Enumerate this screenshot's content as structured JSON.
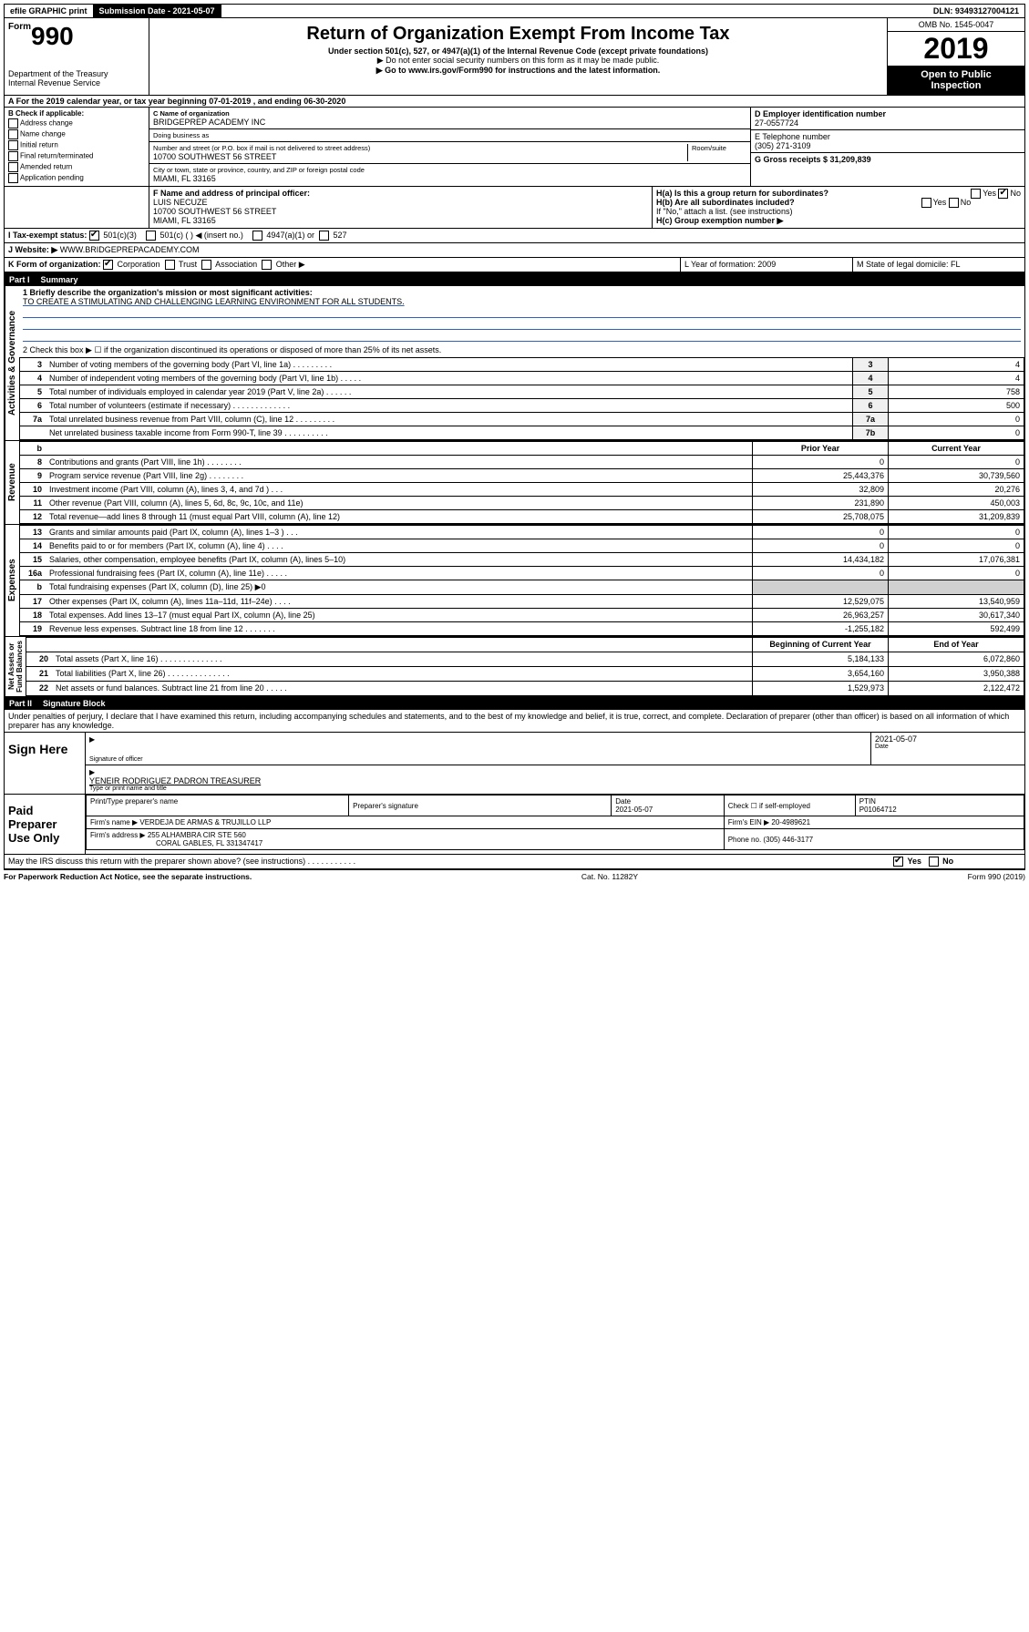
{
  "topbar": {
    "efile": "efile GRAPHIC print",
    "submission_label": "Submission Date - 2021-05-07",
    "dln": "DLN: 93493127004121"
  },
  "header": {
    "form_word": "Form",
    "form_number": "990",
    "dept": "Department of the Treasury\nInternal Revenue Service",
    "title": "Return of Organization Exempt From Income Tax",
    "under": "Under section 501(c), 527, or 4947(a)(1) of the Internal Revenue Code (except private foundations)",
    "no_ssn": "▶ Do not enter social security numbers on this form as it may be made public.",
    "goto": "▶ Go to www.irs.gov/Form990 for instructions and the latest information.",
    "omb": "OMB No. 1545-0047",
    "year": "2019",
    "open_public": "Open to Public\nInspection"
  },
  "period": {
    "line_a": "A For the 2019 calendar year, or tax year beginning 07-01-2019    , and ending 06-30-2020"
  },
  "section_b": {
    "b_label": "B Check if applicable:",
    "checks": [
      "Address change",
      "Name change",
      "Initial return",
      "Final return/terminated",
      "Amended return",
      "Application pending"
    ],
    "c_label": "C Name of organization",
    "org_name": "BRIDGEPREP ACADEMY INC",
    "dba_label": "Doing business as",
    "dba": "",
    "street_label": "Number and street (or P.O. box if mail is not delivered to street address)",
    "room_label": "Room/suite",
    "street": "10700 SOUTHWEST 56 STREET",
    "city_label": "City or town, state or province, country, and ZIP or foreign postal code",
    "city": "MIAMI, FL  33165",
    "d_label": "D Employer identification number",
    "ein": "27-0557724",
    "e_label": "E Telephone number",
    "phone": "(305) 271-3109",
    "g_label": "G Gross receipts $ 31,209,839"
  },
  "section_f": {
    "f_label": "F  Name and address of principal officer:",
    "officer_name": "LUIS NECUZE",
    "officer_addr1": "10700 SOUTHWEST 56 STREET",
    "officer_addr2": "MIAMI, FL  33165",
    "ha_label": "H(a)  Is this a group return for subordinates?",
    "ha_yes": "Yes",
    "ha_no": "No",
    "hb_label": "H(b)  Are all subordinates included?",
    "hb_yes": "Yes",
    "hb_no": "No",
    "hb_note": "If \"No,\" attach a list. (see instructions)",
    "hc_label": "H(c)  Group exemption number ▶"
  },
  "section_i": {
    "i_label": "I   Tax-exempt status:",
    "opt1": "501(c)(3)",
    "opt2": "501(c) (   ) ◀ (insert no.)",
    "opt3": "4947(a)(1) or",
    "opt4": "527"
  },
  "section_j": {
    "j_label": "J   Website: ▶",
    "website": "WWW.BRIDGEPREPACADEMY.COM"
  },
  "section_k": {
    "k_label": "K Form of organization:",
    "opts": [
      "Corporation",
      "Trust",
      "Association",
      "Other ▶"
    ],
    "l_label": "L Year of formation: 2009",
    "m_label": "M State of legal domicile: FL"
  },
  "part1": {
    "header_num": "Part I",
    "header_title": "Summary",
    "line1_label": "1  Briefly describe the organization's mission or most significant activities:",
    "line1_text": "TO CREATE A STIMULATING AND CHALLENGING LEARNING ENVIRONMENT FOR ALL STUDENTS.",
    "line2_label": "2  Check this box ▶ ☐  if the organization discontinued its operations or disposed of more than 25% of its net assets.",
    "rows_top": [
      {
        "n": "3",
        "desc": "Number of voting members of the governing body (Part VI, line 1a)  .    .    .    .    .    .    .    .    .",
        "ln": "3",
        "v": "4"
      },
      {
        "n": "4",
        "desc": "Number of independent voting members of the governing body (Part VI, line 1b)   .    .    .    .    .",
        "ln": "4",
        "v": "4"
      },
      {
        "n": "5",
        "desc": "Total number of individuals employed in calendar year 2019 (Part V, line 2a)    .    .    .    .    .    .",
        "ln": "5",
        "v": "758"
      },
      {
        "n": "6",
        "desc": "Total number of volunteers (estimate if necessary)   .    .    .    .    .    .    .    .    .    .    .    .    .",
        "ln": "6",
        "v": "500"
      },
      {
        "n": "7a",
        "desc": "Total unrelated business revenue from Part VIII, column (C), line 12   .    .    .    .    .    .    .    .    .",
        "ln": "7a",
        "v": "0"
      },
      {
        "n": "",
        "desc": "Net unrelated business taxable income from Form 990-T, line 39   .    .    .    .    .    .    .    .    .    .",
        "ln": "7b",
        "v": "0"
      }
    ],
    "col_prior": "Prior Year",
    "col_current": "Current Year",
    "revenue_rows": [
      {
        "n": "8",
        "desc": "Contributions and grants (Part VIII, line 1h)   .    .    .    .    .    .    .    .",
        "p": "0",
        "c": "0"
      },
      {
        "n": "9",
        "desc": "Program service revenue (Part VIII, line 2g)   .    .    .    .    .    .    .    .",
        "p": "25,443,376",
        "c": "30,739,560"
      },
      {
        "n": "10",
        "desc": "Investment income (Part VIII, column (A), lines 3, 4, and 7d )   .    .    .",
        "p": "32,809",
        "c": "20,276"
      },
      {
        "n": "11",
        "desc": "Other revenue (Part VIII, column (A), lines 5, 6d, 8c, 9c, 10c, and 11e)",
        "p": "231,890",
        "c": "450,003"
      },
      {
        "n": "12",
        "desc": "Total revenue—add lines 8 through 11 (must equal Part VIII, column (A), line 12)",
        "p": "25,708,075",
        "c": "31,209,839"
      }
    ],
    "expense_rows": [
      {
        "n": "13",
        "desc": "Grants and similar amounts paid (Part IX, column (A), lines 1–3 )   .    .    .",
        "p": "0",
        "c": "0"
      },
      {
        "n": "14",
        "desc": "Benefits paid to or for members (Part IX, column (A), line 4)   .    .    .    .",
        "p": "0",
        "c": "0"
      },
      {
        "n": "15",
        "desc": "Salaries, other compensation, employee benefits (Part IX, column (A), lines 5–10)",
        "p": "14,434,182",
        "c": "17,076,381"
      },
      {
        "n": "16a",
        "desc": "Professional fundraising fees (Part IX, column (A), line 11e)   .    .    .    .    .",
        "p": "0",
        "c": "0"
      },
      {
        "n": "b",
        "desc": "Total fundraising expenses (Part IX, column (D), line 25) ▶0",
        "p": "",
        "c": "",
        "grey": true
      },
      {
        "n": "17",
        "desc": "Other expenses (Part IX, column (A), lines 11a–11d, 11f–24e)   .    .    .    .",
        "p": "12,529,075",
        "c": "13,540,959"
      },
      {
        "n": "18",
        "desc": "Total expenses. Add lines 13–17 (must equal Part IX, column (A), line 25)",
        "p": "26,963,257",
        "c": "30,617,340"
      },
      {
        "n": "19",
        "desc": "Revenue less expenses. Subtract line 18 from line 12   .    .    .    .    .    .    .",
        "p": "-1,255,182",
        "c": "592,499"
      }
    ],
    "col_begin": "Beginning of Current Year",
    "col_end": "End of Year",
    "netasset_rows": [
      {
        "n": "20",
        "desc": "Total assets (Part X, line 16)   .    .    .    .    .    .    .    .    .    .    .    .    .    .",
        "p": "5,184,133",
        "c": "6,072,860"
      },
      {
        "n": "21",
        "desc": "Total liabilities (Part X, line 26)   .    .    .    .    .    .    .    .    .    .    .    .    .    .",
        "p": "3,654,160",
        "c": "3,950,388"
      },
      {
        "n": "22",
        "desc": "Net assets or fund balances. Subtract line 21 from line 20   .    .    .    .    .",
        "p": "1,529,973",
        "c": "2,122,472"
      }
    ],
    "side_labels": {
      "governance": "Activities & Governance",
      "revenue": "Revenue",
      "expenses": "Expenses",
      "netassets": "Net Assets or\nFund Balances"
    }
  },
  "part2": {
    "header_num": "Part II",
    "header_title": "Signature Block",
    "perjury": "Under penalties of perjury, I declare that I have examined this return, including accompanying schedules and statements, and to the best of my knowledge and belief, it is true, correct, and complete. Declaration of preparer (other than officer) is based on all information of which preparer has any knowledge.",
    "sign_here": "Sign Here",
    "sig_officer_label": "Signature of officer",
    "sig_date": "2021-05-07",
    "sig_date_label": "Date",
    "officer_typed": "YENEIR RODRIGUEZ PADRON  TREASURER",
    "officer_typed_label": "Type or print name and title",
    "paid_label": "Paid Preparer Use Only",
    "prep_name_label": "Print/Type preparer's name",
    "prep_sig_label": "Preparer's signature",
    "prep_date_label": "Date",
    "prep_date": "2021-05-07",
    "prep_check_label": "Check ☐ if self-employed",
    "ptin_label": "PTIN",
    "ptin": "P01064712",
    "firm_name_label": "Firm's name      ▶",
    "firm_name": "VERDEJA DE ARMAS & TRUJILLO LLP",
    "firm_ein_label": "Firm's EIN ▶",
    "firm_ein": "20-4989621",
    "firm_addr_label": "Firm's address ▶",
    "firm_addr1": "255 ALHAMBRA CIR STE 560",
    "firm_addr2": "CORAL GABLES, FL  331347417",
    "firm_phone_label": "Phone no.",
    "firm_phone": "(305) 446-3177",
    "discuss": "May the IRS discuss this return with the preparer shown above? (see instructions)   .    .    .    .    .    .    .    .    .    .    .",
    "discuss_yes": "Yes",
    "discuss_no": "No"
  },
  "footer": {
    "paperwork": "For Paperwork Reduction Act Notice, see the separate instructions.",
    "cat": "Cat. No. 11282Y",
    "form": "Form 990 (2019)"
  }
}
